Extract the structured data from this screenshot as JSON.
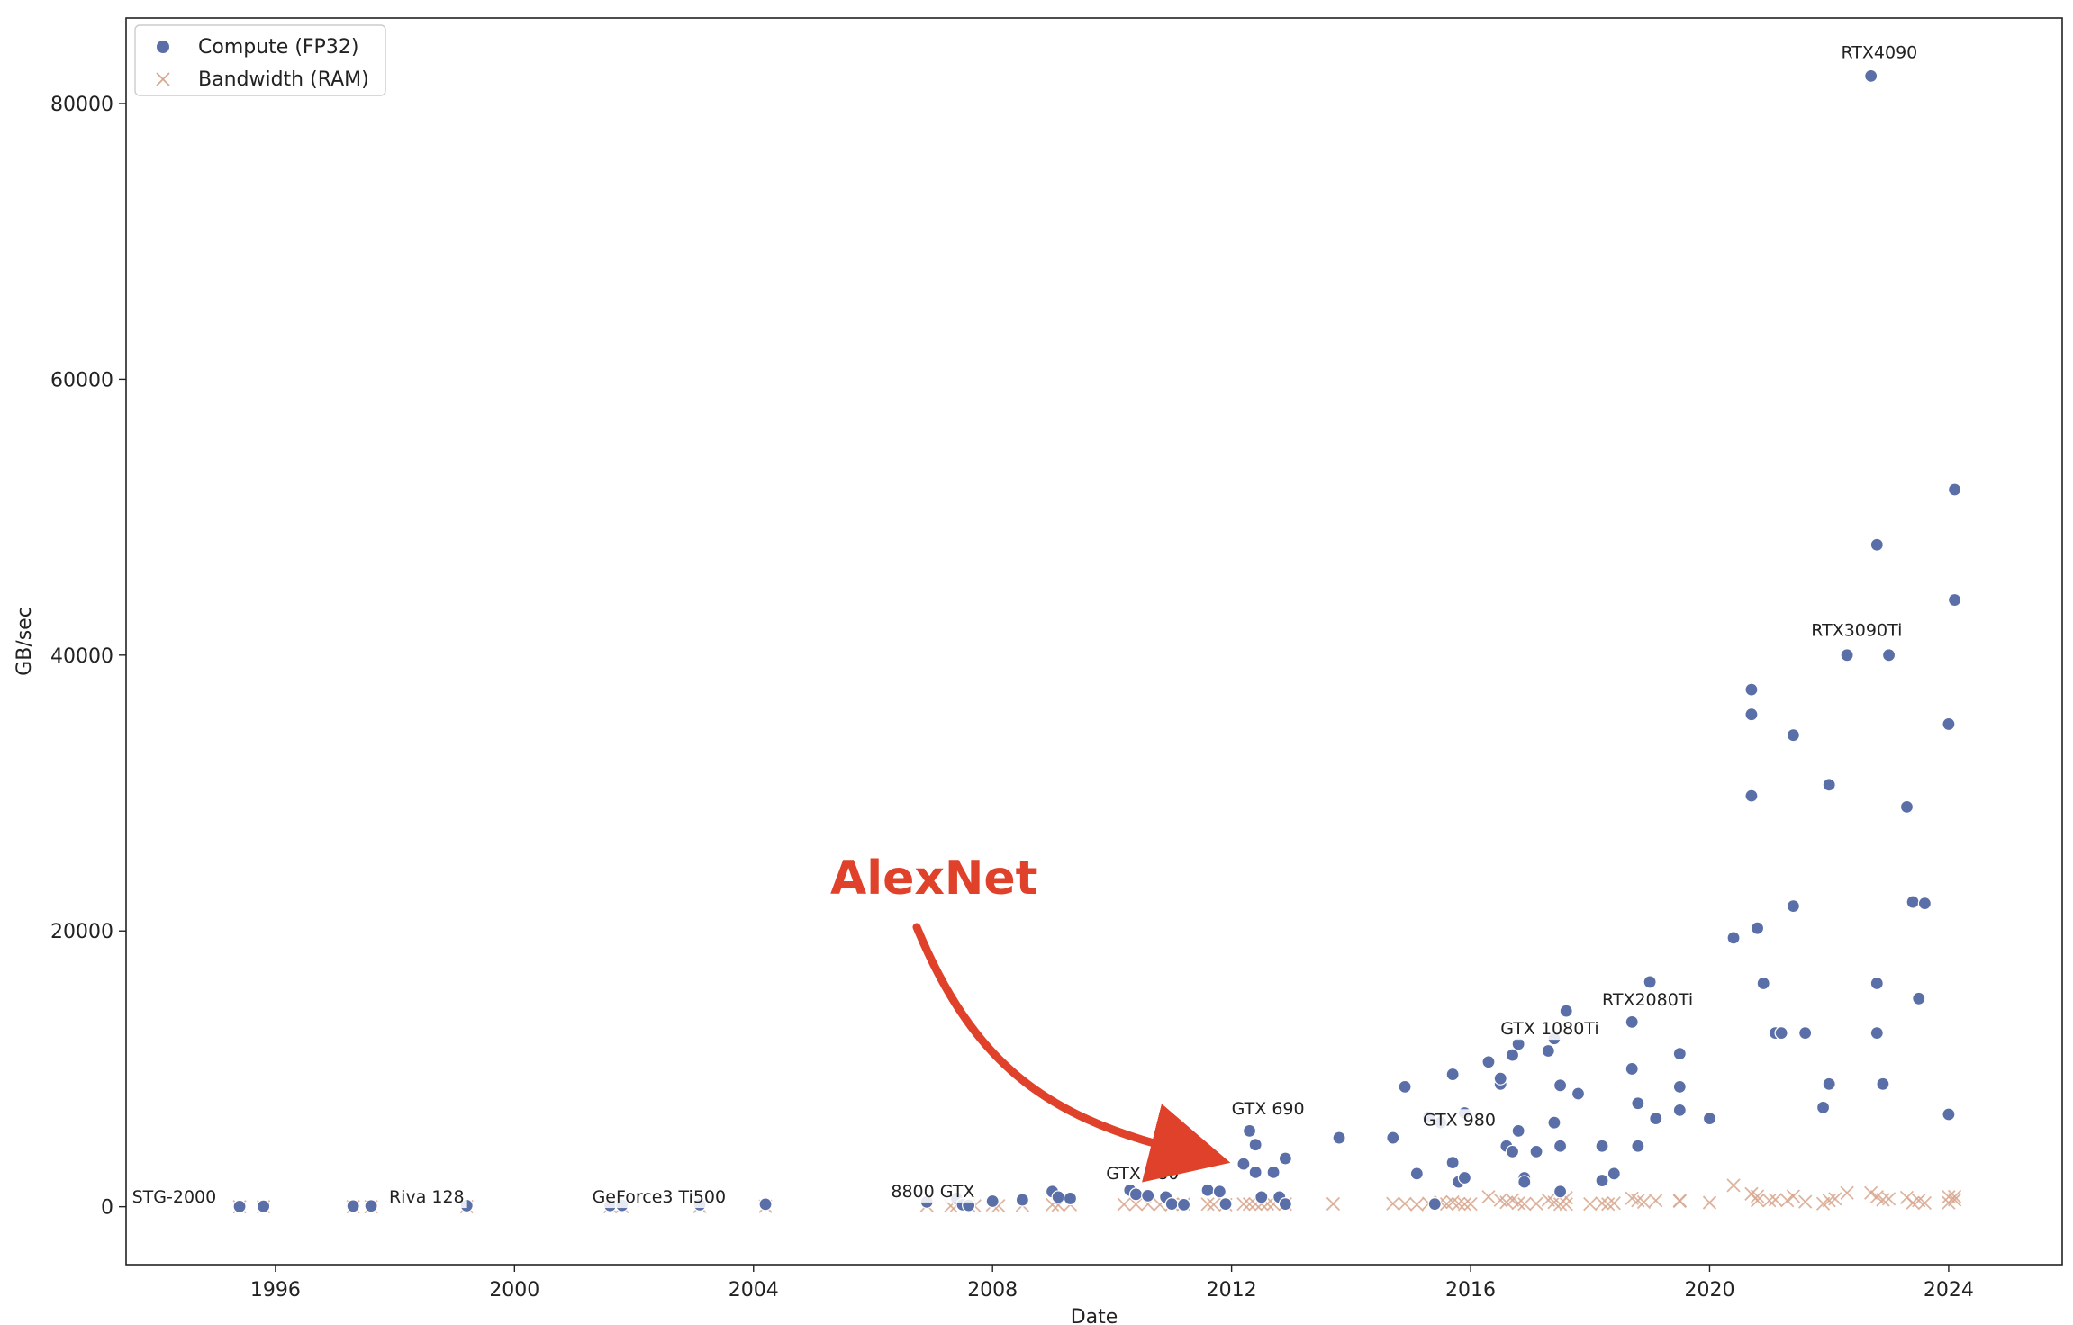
{
  "chart_data": {
    "type": "scatter",
    "xlabel": "Date",
    "ylabel": "GB/sec",
    "xlim": [
      1993.5,
      2025.9
    ],
    "ylim": [
      -4200,
      86200
    ],
    "x_ticks": [
      1996,
      2000,
      2004,
      2008,
      2012,
      2016,
      2020,
      2024
    ],
    "y_ticks": [
      0,
      20000,
      40000,
      60000,
      80000
    ],
    "grid": false,
    "legend": {
      "placement": "top-left",
      "entries": [
        "Compute (FP32)",
        "Bandwidth (RAM)"
      ]
    },
    "colors": {
      "compute": "#5a6fa8",
      "bandwidth": "#d9a78f",
      "annotation": "#e0412a"
    },
    "series": [
      {
        "name": "Compute (FP32)",
        "marker": "circle",
        "points": [
          [
            1995.4,
            20
          ],
          [
            1995.8,
            30
          ],
          [
            1997.3,
            50
          ],
          [
            1997.6,
            60
          ],
          [
            1999.2,
            80
          ],
          [
            2001.6,
            90
          ],
          [
            2001.8,
            100
          ],
          [
            2003.1,
            150
          ],
          [
            2004.2,
            180
          ],
          [
            2006.9,
            350
          ],
          [
            2007.4,
            600
          ],
          [
            2007.5,
            150
          ],
          [
            2007.6,
            100
          ],
          [
            2008.0,
            400
          ],
          [
            2008.5,
            500
          ],
          [
            2009.0,
            1100
          ],
          [
            2009.1,
            700
          ],
          [
            2009.3,
            600
          ],
          [
            2010.3,
            1200
          ],
          [
            2010.4,
            900
          ],
          [
            2010.6,
            800
          ],
          [
            2010.9,
            700
          ],
          [
            2011.0,
            200
          ],
          [
            2011.2,
            150
          ],
          [
            2011.6,
            4000
          ],
          [
            2011.6,
            1200
          ],
          [
            2011.8,
            1100
          ],
          [
            2011.9,
            200
          ],
          [
            2012.2,
            3100
          ],
          [
            2012.3,
            5500
          ],
          [
            2012.4,
            4500
          ],
          [
            2012.4,
            2500
          ],
          [
            2012.5,
            700
          ],
          [
            2012.7,
            2500
          ],
          [
            2012.8,
            700
          ],
          [
            2012.9,
            3500
          ],
          [
            2012.9,
            200
          ],
          [
            2013.8,
            5000
          ],
          [
            2014.7,
            5000
          ],
          [
            2014.9,
            8700
          ],
          [
            2015.1,
            2400
          ],
          [
            2015.3,
            6500
          ],
          [
            2015.5,
            6100
          ],
          [
            2015.4,
            200
          ],
          [
            2015.7,
            9600
          ],
          [
            2015.7,
            3200
          ],
          [
            2015.8,
            1800
          ],
          [
            2015.9,
            6800
          ],
          [
            2015.9,
            2100
          ],
          [
            2016.3,
            10500
          ],
          [
            2016.5,
            8900
          ],
          [
            2016.5,
            9300
          ],
          [
            2016.6,
            4400
          ],
          [
            2016.7,
            11000
          ],
          [
            2016.7,
            4000
          ],
          [
            2016.8,
            11800
          ],
          [
            2016.8,
            5500
          ],
          [
            2016.9,
            2100
          ],
          [
            2016.9,
            1800
          ],
          [
            2017.1,
            4000
          ],
          [
            2017.3,
            11300
          ],
          [
            2017.4,
            12200
          ],
          [
            2017.4,
            6100
          ],
          [
            2017.5,
            8800
          ],
          [
            2017.5,
            4400
          ],
          [
            2017.5,
            1100
          ],
          [
            2017.6,
            14200
          ],
          [
            2017.8,
            8200
          ],
          [
            2018.2,
            4400
          ],
          [
            2018.2,
            1900
          ],
          [
            2018.4,
            2400
          ],
          [
            2018.7,
            13400
          ],
          [
            2018.7,
            10000
          ],
          [
            2018.8,
            7500
          ],
          [
            2018.8,
            4400
          ],
          [
            2019.0,
            16300
          ],
          [
            2019.1,
            6400
          ],
          [
            2019.5,
            11100
          ],
          [
            2019.5,
            8700
          ],
          [
            2019.5,
            7000
          ],
          [
            2020.0,
            6400
          ],
          [
            2020.4,
            19500
          ],
          [
            2020.7,
            37500
          ],
          [
            2020.7,
            35700
          ],
          [
            2020.7,
            29800
          ],
          [
            2020.8,
            20200
          ],
          [
            2020.9,
            16200
          ],
          [
            2021.1,
            12600
          ],
          [
            2021.2,
            12600
          ],
          [
            2021.4,
            34200
          ],
          [
            2021.4,
            21800
          ],
          [
            2021.6,
            12600
          ],
          [
            2021.9,
            7200
          ],
          [
            2022.0,
            30600
          ],
          [
            2022.0,
            8900
          ],
          [
            2022.3,
            40000
          ],
          [
            2022.7,
            82000
          ],
          [
            2022.8,
            48000
          ],
          [
            2022.8,
            16200
          ],
          [
            2022.8,
            12600
          ],
          [
            2022.9,
            8900
          ],
          [
            2023.0,
            40000
          ],
          [
            2023.3,
            29000
          ],
          [
            2023.4,
            22100
          ],
          [
            2023.5,
            15100
          ],
          [
            2023.6,
            22000
          ],
          [
            2024.0,
            35000
          ],
          [
            2024.0,
            6700
          ],
          [
            2024.1,
            52000
          ],
          [
            2024.1,
            44000
          ]
        ]
      },
      {
        "name": "Bandwidth (RAM)",
        "marker": "x",
        "points": [
          [
            1995.4,
            2
          ],
          [
            1995.8,
            3
          ],
          [
            1997.3,
            4
          ],
          [
            1997.6,
            5
          ],
          [
            1999.2,
            6
          ],
          [
            2001.6,
            7
          ],
          [
            2001.8,
            8
          ],
          [
            2003.1,
            20
          ],
          [
            2004.2,
            30
          ],
          [
            2006.9,
            90
          ],
          [
            2007.3,
            60
          ],
          [
            2007.4,
            100
          ],
          [
            2007.6,
            90
          ],
          [
            2007.7,
            60
          ],
          [
            2008.0,
            140
          ],
          [
            2008.1,
            70
          ],
          [
            2008.5,
            110
          ],
          [
            2009.0,
            150
          ],
          [
            2009.1,
            120
          ],
          [
            2009.3,
            160
          ],
          [
            2010.2,
            170
          ],
          [
            2010.4,
            180
          ],
          [
            2010.6,
            190
          ],
          [
            2010.8,
            150
          ],
          [
            2011.0,
            170
          ],
          [
            2011.2,
            190
          ],
          [
            2011.6,
            190
          ],
          [
            2011.7,
            160
          ],
          [
            2011.9,
            150
          ],
          [
            2012.2,
            200
          ],
          [
            2012.3,
            190
          ],
          [
            2012.4,
            190
          ],
          [
            2012.5,
            200
          ],
          [
            2012.6,
            210
          ],
          [
            2012.7,
            190
          ],
          [
            2012.9,
            200
          ],
          [
            2013.7,
            210
          ],
          [
            2014.7,
            220
          ],
          [
            2014.9,
            224
          ],
          [
            2015.1,
            160
          ],
          [
            2015.3,
            240
          ],
          [
            2015.5,
            336
          ],
          [
            2015.6,
            200
          ],
          [
            2015.7,
            336
          ],
          [
            2015.8,
            220
          ],
          [
            2015.9,
            180
          ],
          [
            2016.0,
            200
          ],
          [
            2016.3,
            720
          ],
          [
            2016.5,
            480
          ],
          [
            2016.6,
            320
          ],
          [
            2016.7,
            480
          ],
          [
            2016.8,
            256
          ],
          [
            2016.9,
            200
          ],
          [
            2017.1,
            224
          ],
          [
            2017.3,
            484
          ],
          [
            2017.4,
            320
          ],
          [
            2017.5,
            180
          ],
          [
            2017.6,
            192
          ],
          [
            2017.6,
            652
          ],
          [
            2018.0,
            200
          ],
          [
            2018.2,
            256
          ],
          [
            2018.3,
            192
          ],
          [
            2018.4,
            256
          ],
          [
            2018.7,
            616
          ],
          [
            2018.8,
            448
          ],
          [
            2018.9,
            336
          ],
          [
            2019.1,
            448
          ],
          [
            2019.5,
            448
          ],
          [
            2019.5,
            400
          ],
          [
            2020.0,
            300
          ],
          [
            2020.4,
            1555
          ],
          [
            2020.7,
            936
          ],
          [
            2020.8,
            760
          ],
          [
            2020.8,
            448
          ],
          [
            2021.0,
            448
          ],
          [
            2021.1,
            512
          ],
          [
            2021.3,
            448
          ],
          [
            2021.4,
            760
          ],
          [
            2021.6,
            360
          ],
          [
            2021.9,
            224
          ],
          [
            2022.0,
            448
          ],
          [
            2022.1,
            576
          ],
          [
            2022.3,
            1008
          ],
          [
            2022.7,
            1008
          ],
          [
            2022.8,
            720
          ],
          [
            2022.9,
            504
          ],
          [
            2023.0,
            576
          ],
          [
            2023.3,
            672
          ],
          [
            2023.4,
            288
          ],
          [
            2023.5,
            448
          ],
          [
            2023.6,
            272
          ],
          [
            2024.0,
            716
          ],
          [
            2024.0,
            288
          ],
          [
            2024.1,
            736
          ],
          [
            2024.1,
            504
          ]
        ]
      }
    ],
    "gpu_labels": [
      {
        "text": "STG-2000",
        "x": 1993.6,
        "y": 300
      },
      {
        "text": "Riva 128",
        "x": 1997.9,
        "y": 300
      },
      {
        "text": "GeForce3 Ti500",
        "x": 2001.3,
        "y": 300
      },
      {
        "text": "8800 GTX",
        "x": 2006.3,
        "y": 700
      },
      {
        "text": "GTX 480",
        "x": 2009.9,
        "y": 2000
      },
      {
        "text": "GTX 690",
        "x": 2012.0,
        "y": 6700
      },
      {
        "text": "GTX 980",
        "x": 2015.2,
        "y": 5900
      },
      {
        "text": "GTX 1080Ti",
        "x": 2016.5,
        "y": 12500
      },
      {
        "text": "RTX2080Ti",
        "x": 2018.2,
        "y": 14600
      },
      {
        "text": "RTX3090Ti",
        "x": 2021.7,
        "y": 41400
      },
      {
        "text": "RTX4090",
        "x": 2022.2,
        "y": 83300
      }
    ],
    "annotation": {
      "text": "AlexNet",
      "arrow_to": [
        2011.3,
        3800
      ]
    }
  }
}
